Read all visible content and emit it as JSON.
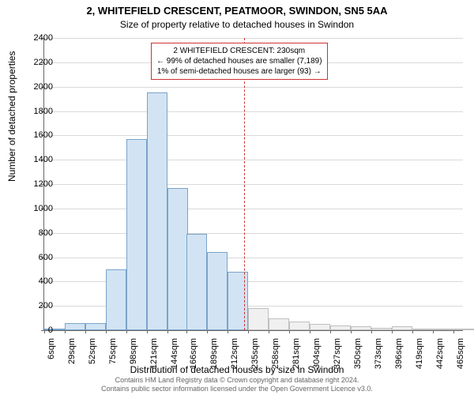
{
  "title_main": "2, WHITEFIELD CRESCENT, PEATMOOR, SWINDON, SN5 5AA",
  "title_sub": "Size of property relative to detached houses in Swindon",
  "ylabel": "Number of detached properties",
  "xlabel": "Distribution of detached houses by size in Swindon",
  "footer_line1": "Contains HM Land Registry data © Crown copyright and database right 2024.",
  "footer_line2": "Contains public sector information licensed under the Open Government Licence v3.0.",
  "chart": {
    "type": "histogram",
    "background_color": "#ffffff",
    "grid_color": "#d9d9d9",
    "axis_color": "#666666",
    "bar_fill": "#d2e4f3",
    "bar_fill_right": "#f0f0f0",
    "bar_border": "#7aa3c9",
    "bar_border_right": "#bfbfbf",
    "marker_color": "#cc3333",
    "ylim": [
      0,
      2400
    ],
    "ytick_step": 200,
    "x_labels": [
      "6sqm",
      "29sqm",
      "52sqm",
      "75sqm",
      "98sqm",
      "121sqm",
      "144sqm",
      "166sqm",
      "189sqm",
      "212sqm",
      "235sqm",
      "258sqm",
      "281sqm",
      "304sqm",
      "327sqm",
      "350sqm",
      "373sqm",
      "396sqm",
      "419sqm",
      "442sqm",
      "465sqm"
    ],
    "values": [
      0,
      60,
      60,
      500,
      1570,
      1950,
      1170,
      790,
      640,
      480,
      180,
      100,
      70,
      50,
      40,
      30,
      20,
      30,
      10,
      10,
      10
    ],
    "marker_x": 230,
    "x_range": [
      6,
      476
    ],
    "annotation": {
      "line1": "2 WHITEFIELD CRESCENT: 230sqm",
      "line2": "← 99% of detached houses are smaller (7,189)",
      "line3": "1% of semi-detached houses are larger (93) →"
    },
    "title_fontsize": 13,
    "subtitle_fontsize": 12,
    "label_fontsize": 12,
    "tick_fontsize": 11,
    "anno_fontsize": 10,
    "footer_fontsize": 9
  }
}
